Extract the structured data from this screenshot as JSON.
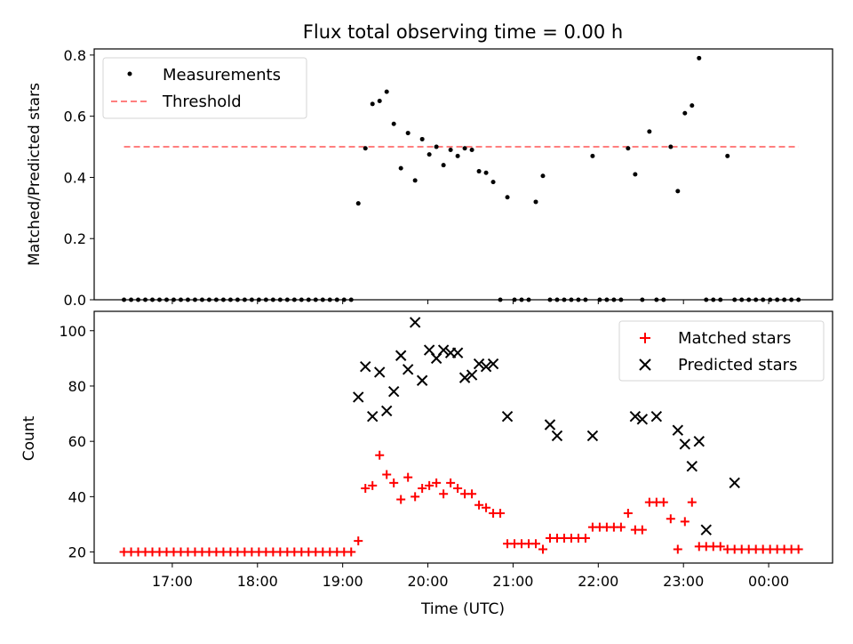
{
  "chart_data": [
    {
      "type": "scatter",
      "title": "Flux total observing time = 0.00 h",
      "ylabel": "Matched/Predicted stars",
      "xlabel": "",
      "ylim": [
        0,
        0.82
      ],
      "yticks": [
        "0.0",
        "0.2",
        "0.4",
        "0.6",
        "0.8"
      ],
      "ytick_values": [
        0,
        0.2,
        0.4,
        0.6,
        0.8
      ],
      "grid": false,
      "legend": "top-left",
      "threshold": 0.5,
      "series": [
        {
          "name": "Measurements",
          "color": "#000000",
          "x": [
            "16:26",
            "16:31",
            "16:36",
            "16:41",
            "16:46",
            "16:51",
            "16:56",
            "17:01",
            "17:06",
            "17:11",
            "17:16",
            "17:21",
            "17:26",
            "17:31",
            "17:36",
            "17:41",
            "17:46",
            "17:51",
            "17:56",
            "18:01",
            "18:06",
            "18:11",
            "18:16",
            "18:21",
            "18:26",
            "18:31",
            "18:36",
            "18:41",
            "18:46",
            "18:51",
            "18:56",
            "19:01",
            "19:06",
            "19:11",
            "19:16",
            "19:21",
            "19:26",
            "19:31",
            "19:36",
            "19:41",
            "19:46",
            "19:51",
            "19:56",
            "20:01",
            "20:06",
            "20:11",
            "20:16",
            "20:21",
            "20:26",
            "20:31",
            "20:36",
            "20:41",
            "20:46",
            "20:51",
            "20:56",
            "21:01",
            "21:06",
            "21:11",
            "21:16",
            "21:21",
            "21:26",
            "21:31",
            "21:36",
            "21:41",
            "21:46",
            "21:51",
            "21:56",
            "22:01",
            "22:06",
            "22:11",
            "22:16",
            "22:21",
            "22:26",
            "22:31",
            "22:36",
            "22:41",
            "22:46",
            "22:51",
            "22:56",
            "23:01",
            "23:06",
            "23:11",
            "23:16",
            "23:21",
            "23:26",
            "23:31",
            "23:36",
            "23:41",
            "23:46",
            "23:51",
            "23:56",
            "00:01",
            "00:06",
            "00:11",
            "00:16",
            "00:21"
          ],
          "y": [
            0,
            0,
            0,
            0,
            0,
            0,
            0,
            0,
            0,
            0,
            0,
            0,
            0,
            0,
            0,
            0,
            0,
            0,
            0,
            0,
            0,
            0,
            0,
            0,
            0,
            0,
            0,
            0,
            0,
            0,
            0,
            0,
            0,
            0.315,
            0.495,
            0.64,
            0.65,
            0.68,
            0.575,
            0.43,
            0.545,
            0.39,
            0.525,
            0.475,
            0.5,
            0.44,
            0.49,
            0.47,
            0.495,
            0.49,
            0.42,
            0.415,
            0.385,
            0,
            0.335,
            0,
            0,
            0,
            0.32,
            0.405,
            0,
            0,
            0,
            0,
            0,
            0,
            0.47,
            0,
            0,
            0,
            0,
            0.495,
            0.41,
            0,
            0.55,
            0,
            0,
            0.5,
            0.355,
            0.61,
            0.635,
            0.79,
            0,
            0,
            0,
            0.47,
            0,
            0,
            0,
            0,
            0,
            0,
            0,
            0,
            0,
            0
          ]
        },
        {
          "name": "Threshold",
          "color": "#ff7f7f",
          "x": [
            "16:26",
            "00:21"
          ],
          "y": [
            0.5,
            0.5
          ]
        }
      ]
    },
    {
      "type": "scatter",
      "title": "",
      "xlabel": "Time (UTC)",
      "ylabel": "Count",
      "ylim": [
        16,
        107
      ],
      "yticks": [
        "20",
        "40",
        "60",
        "80",
        "100"
      ],
      "ytick_values": [
        20,
        40,
        60,
        80,
        100
      ],
      "xticks": [
        "17:00",
        "18:00",
        "19:00",
        "20:00",
        "21:00",
        "22:00",
        "23:00",
        "00:00"
      ],
      "xtick_values": [
        "17:00",
        "18:00",
        "19:00",
        "20:00",
        "21:00",
        "22:00",
        "23:00",
        "00:00"
      ],
      "xlim": [
        "16:05",
        "00:45"
      ],
      "grid": false,
      "legend": "top-right",
      "series": [
        {
          "name": "Matched stars",
          "color": "#ff0000",
          "x": [
            "16:26",
            "16:31",
            "16:36",
            "16:41",
            "16:46",
            "16:51",
            "16:56",
            "17:01",
            "17:06",
            "17:11",
            "17:16",
            "17:21",
            "17:26",
            "17:31",
            "17:36",
            "17:41",
            "17:46",
            "17:51",
            "17:56",
            "18:01",
            "18:06",
            "18:11",
            "18:16",
            "18:21",
            "18:26",
            "18:31",
            "18:36",
            "18:41",
            "18:46",
            "18:51",
            "18:56",
            "19:01",
            "19:06",
            "19:11",
            "19:16",
            "19:21",
            "19:26",
            "19:31",
            "19:36",
            "19:41",
            "19:46",
            "19:51",
            "19:56",
            "20:01",
            "20:06",
            "20:11",
            "20:16",
            "20:21",
            "20:26",
            "20:31",
            "20:36",
            "20:41",
            "20:46",
            "20:51",
            "20:56",
            "21:01",
            "21:06",
            "21:11",
            "21:16",
            "21:21",
            "21:26",
            "21:31",
            "21:36",
            "21:41",
            "21:46",
            "21:51",
            "21:56",
            "22:01",
            "22:06",
            "22:11",
            "22:16",
            "22:21",
            "22:26",
            "22:31",
            "22:36",
            "22:41",
            "22:46",
            "22:51",
            "22:56",
            "23:01",
            "23:06",
            "23:11",
            "23:16",
            "23:21",
            "23:26",
            "23:31",
            "23:36",
            "23:41",
            "23:46",
            "23:51",
            "23:56",
            "00:01",
            "00:06",
            "00:11",
            "00:16",
            "00:21"
          ],
          "y": [
            20,
            20,
            20,
            20,
            20,
            20,
            20,
            20,
            20,
            20,
            20,
            20,
            20,
            20,
            20,
            20,
            20,
            20,
            20,
            20,
            20,
            20,
            20,
            20,
            20,
            20,
            20,
            20,
            20,
            20,
            20,
            20,
            20,
            24,
            43,
            44,
            55,
            48,
            45,
            39,
            47,
            40,
            43,
            44,
            45,
            41,
            45,
            43,
            41,
            41,
            37,
            36,
            34,
            34,
            23,
            23,
            23,
            23,
            23,
            21,
            25,
            25,
            25,
            25,
            25,
            25,
            29,
            29,
            29,
            29,
            29,
            34,
            28,
            28,
            38,
            38,
            38,
            32,
            21,
            31,
            38,
            22,
            22,
            22,
            22,
            21,
            21,
            21,
            21,
            21,
            21,
            21,
            21,
            21,
            21,
            21
          ]
        },
        {
          "name": "Predicted stars",
          "color": "#000000",
          "x": [
            "19:11",
            "19:16",
            "19:21",
            "19:26",
            "19:31",
            "19:36",
            "19:41",
            "19:46",
            "19:51",
            "19:56",
            "20:01",
            "20:06",
            "20:11",
            "20:16",
            "20:21",
            "20:26",
            "20:31",
            "20:36",
            "20:41",
            "20:46",
            "20:56",
            "21:26",
            "21:31",
            "21:56",
            "22:26",
            "22:31",
            "22:41",
            "22:56",
            "23:01",
            "23:06",
            "23:11",
            "23:16",
            "23:36"
          ],
          "y": [
            76,
            87,
            69,
            85,
            71,
            78,
            91,
            86,
            103,
            82,
            93,
            90,
            93,
            92,
            92,
            83,
            84,
            88,
            87,
            88,
            69,
            66,
            62,
            62,
            69,
            68,
            69,
            64,
            59,
            51,
            60,
            28,
            45
          ]
        }
      ]
    }
  ]
}
